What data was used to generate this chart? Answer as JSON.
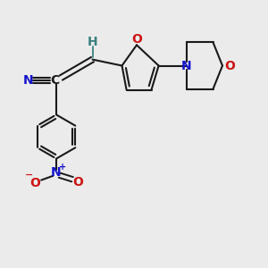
{
  "bg_color": "#ebebeb",
  "bond_color": "#1a1a1a",
  "atom_colors": {
    "C": "#1a1a1a",
    "N": "#1414cc",
    "O": "#cc1414",
    "H": "#3a8080"
  },
  "figsize": [
    3.0,
    3.0
  ],
  "dpi": 100
}
